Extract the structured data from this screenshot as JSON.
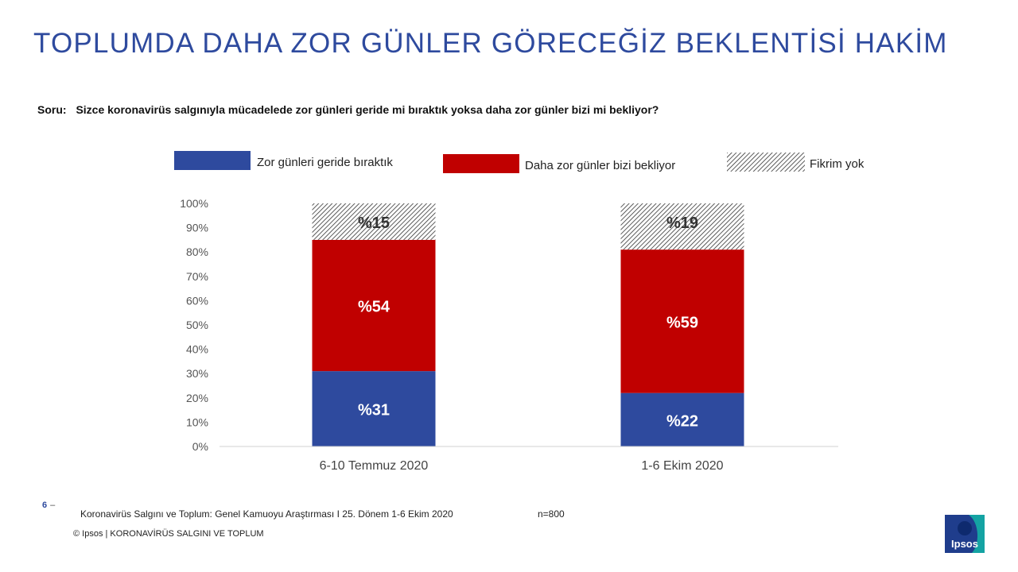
{
  "page": {
    "title": "TOPLUMDA DAHA ZOR GÜNLER GÖRECEĞİZ BEKLENTİSİ HAKİM",
    "question_label": "Soru:",
    "question_text": "Sizce koronavirüs salgınıyla mücadelede zor günleri geride mi bıraktık yoksa daha zor günler bizi mi bekliyor?"
  },
  "colors": {
    "title": "#2E4A9E",
    "series_1": "#2E4A9E",
    "series_2": "#C00000",
    "series_3_pattern": "#333333"
  },
  "chart_data": {
    "type": "bar",
    "stacked": true,
    "categories": [
      "6-10 Temmuz 2020",
      "1-6 Ekim 2020"
    ],
    "series": [
      {
        "name": "Zor günleri geride bıraktık",
        "values": [
          31,
          22
        ],
        "labels": [
          "%31",
          "%22"
        ]
      },
      {
        "name": "Daha zor günler bizi bekliyor",
        "values": [
          54,
          59
        ],
        "labels": [
          "%54",
          "%59"
        ]
      },
      {
        "name": "Fikrim yok",
        "values": [
          15,
          19
        ],
        "labels": [
          "%15",
          "%19"
        ]
      }
    ],
    "yticks": [
      "0%",
      "10%",
      "20%",
      "30%",
      "40%",
      "50%",
      "60%",
      "70%",
      "80%",
      "90%",
      "100%"
    ],
    "ylim": [
      0,
      100
    ],
    "grid": false,
    "legend_position": "top"
  },
  "footer": {
    "page_number": "6",
    "page_dash": "–",
    "source": "Koronavirüs Salgını ve Toplum: Genel Kamuoyu Araştırması I 25. Dönem 1-6 Ekim 2020",
    "sample": "n=800",
    "copyright": "© Ipsos | KORONAVİRÜS SALGINI VE TOPLUM",
    "logo_text": "Ipsos"
  }
}
